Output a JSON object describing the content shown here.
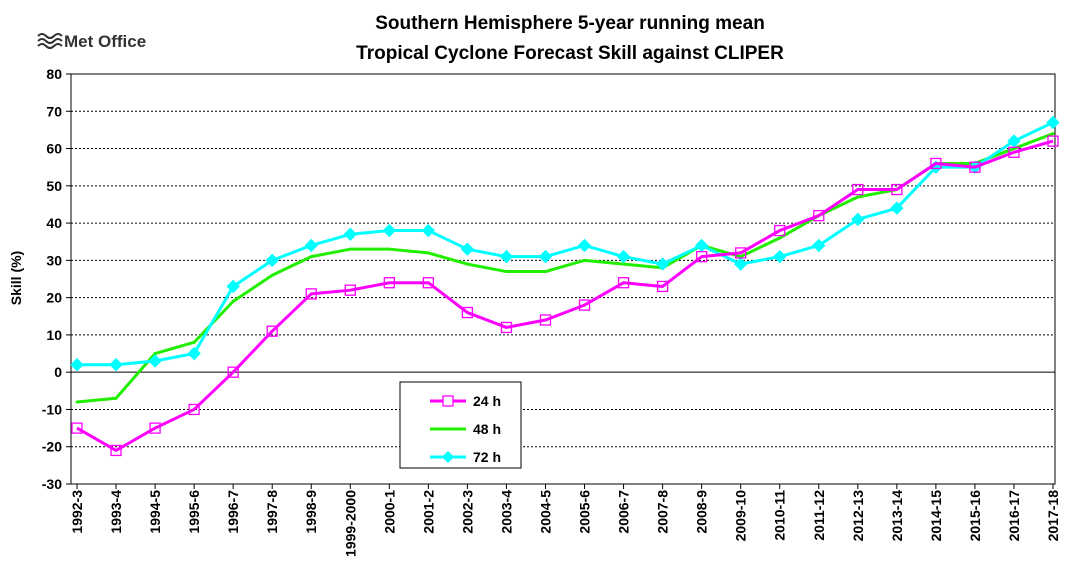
{
  "logo": {
    "text": "Met Office",
    "icon": "met-office-wave-icon"
  },
  "chart_data": {
    "type": "line",
    "title": [
      "Southern Hemisphere 5-year running mean",
      "Tropical Cyclone Forecast Skill against CLIPER"
    ],
    "ylabel": "Skill (%)",
    "xlabel": "",
    "ylim": [
      -30,
      80
    ],
    "yticks": [
      -30,
      -20,
      -10,
      0,
      10,
      20,
      30,
      40,
      50,
      60,
      70,
      80
    ],
    "grid": "horizontal-dashed",
    "legend_placement": "bottom-center",
    "categories": [
      "1992-3",
      "1993-4",
      "1994-5",
      "1995-6",
      "1996-7",
      "1997-8",
      "1998-9",
      "1999-2000",
      "2000-1",
      "2001-2",
      "2002-3",
      "2003-4",
      "2004-5",
      "2005-6",
      "2006-7",
      "2007-8",
      "2008-9",
      "2009-10",
      "2010-11",
      "2011-12",
      "2012-13",
      "2013-14",
      "2014-15",
      "2015-16",
      "2016-17",
      "2017-18"
    ],
    "series": [
      {
        "name": "24 h",
        "color": "#ff00ff",
        "marker": "open-square",
        "values": [
          -15,
          -21,
          -15,
          -10,
          0,
          11,
          21,
          22,
          24,
          24,
          16,
          12,
          14,
          18,
          24,
          23,
          31,
          32,
          38,
          42,
          49,
          49,
          56,
          55,
          59,
          62
        ]
      },
      {
        "name": "48 h",
        "color": "#22ee00",
        "marker": "none",
        "values": [
          -8,
          -7,
          5,
          8,
          19,
          26,
          31,
          33,
          33,
          32,
          29,
          27,
          27,
          30,
          29,
          28,
          34,
          31,
          36,
          42,
          47,
          49,
          56,
          56,
          60,
          64
        ]
      },
      {
        "name": "72 h",
        "color": "#00ffff",
        "marker": "diamond",
        "values": [
          2,
          2,
          3,
          5,
          23,
          30,
          34,
          37,
          38,
          38,
          33,
          31,
          31,
          34,
          31,
          29,
          34,
          29,
          31,
          34,
          41,
          44,
          55,
          55,
          62,
          67
        ]
      }
    ]
  }
}
